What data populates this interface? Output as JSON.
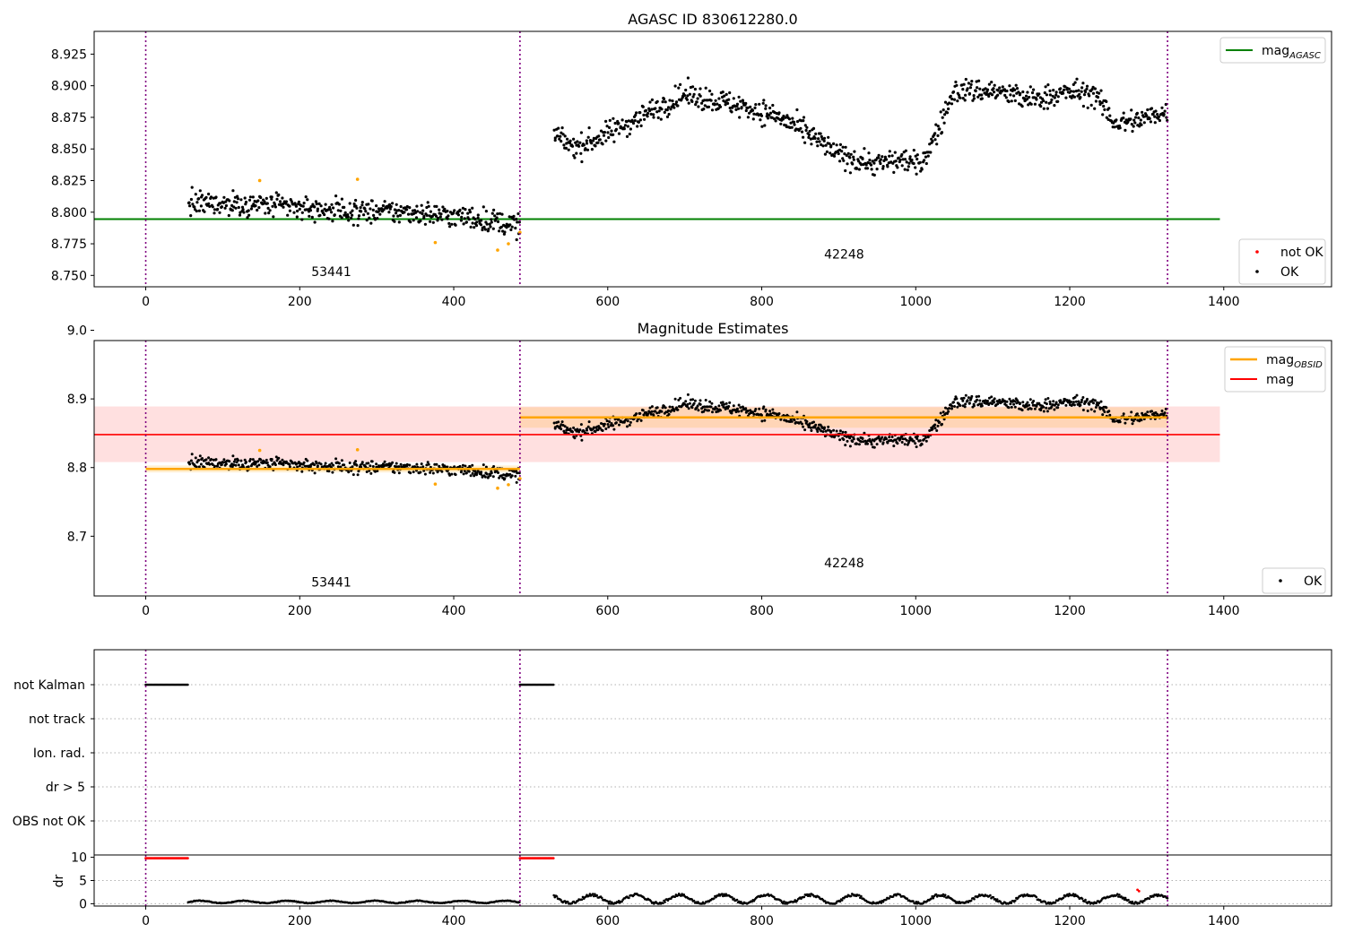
{
  "colors": {
    "ok_points": "#000000",
    "not_ok_points": "#ff0000",
    "flagged_points": "#ffa500",
    "mag_agasc_line": "#008000",
    "mag_obsid_line": "#ffa500",
    "mag_line": "#ff0000",
    "obs_boundary": "#800080"
  },
  "chart_data": [
    {
      "type": "scatter",
      "title": "AGASC ID 830612280.0",
      "xlim": [
        -67,
        1540
      ],
      "ylim": [
        8.741,
        8.943
      ],
      "xticks": [
        0,
        200,
        400,
        600,
        800,
        1000,
        1200,
        1400
      ],
      "yticks": [
        8.75,
        8.775,
        8.8,
        8.825,
        8.85,
        8.875,
        8.9,
        8.925
      ],
      "obs_boundaries": [
        0,
        486,
        1327
      ],
      "obs_labels": [
        {
          "text": "53441",
          "x": 241,
          "y": 8.7495
        },
        {
          "text": "42248",
          "x": 907,
          "y": 8.7635
        }
      ],
      "lines": [
        {
          "name": "mag$_{AGASC}$",
          "label_main": "mag",
          "label_sub": "AGASC",
          "y": 8.7945,
          "x": [
            -67,
            1395
          ],
          "color": "#008000"
        }
      ],
      "legend": [
        {
          "placement": "top-right",
          "entries": [
            {
              "main": "mag",
              "sub": "AGASC",
              "kind": "line",
              "color": "#008000"
            }
          ]
        },
        {
          "placement": "bottom-right",
          "entries": [
            {
              "main": "not OK",
              "kind": "dot",
              "color": "#ff0000"
            },
            {
              "main": "OK",
              "kind": "dot",
              "color": "#000000"
            }
          ]
        }
      ],
      "segments": [
        {
          "x": [
            55,
            486
          ],
          "trend": [
            [
              55,
              8.807
            ],
            [
              150,
              8.806
            ],
            [
              250,
              8.801
            ],
            [
              350,
              8.8
            ],
            [
              430,
              8.795
            ],
            [
              486,
              8.789
            ]
          ],
          "scatter": 0.0085
        },
        {
          "x": [
            530,
            1327
          ],
          "trend": [
            [
              530,
              8.861
            ],
            [
              560,
              8.851
            ],
            [
              600,
              8.862
            ],
            [
              650,
              8.878
            ],
            [
              700,
              8.893
            ],
            [
              760,
              8.886
            ],
            [
              820,
              8.876
            ],
            [
              870,
              8.858
            ],
            [
              900,
              8.845
            ],
            [
              950,
              8.838
            ],
            [
              985,
              8.842
            ],
            [
              1005,
              8.836
            ],
            [
              1030,
              8.866
            ],
            [
              1050,
              8.896
            ],
            [
              1100,
              8.896
            ],
            [
              1150,
              8.889
            ],
            [
              1200,
              8.895
            ],
            [
              1230,
              8.894
            ],
            [
              1260,
              8.87
            ],
            [
              1290,
              8.873
            ],
            [
              1327,
              8.88
            ]
          ],
          "scatter": 0.0085
        }
      ],
      "flagged_points": [
        [
          148,
          8.825
        ],
        [
          275,
          8.826
        ],
        [
          376,
          8.776
        ],
        [
          457,
          8.77
        ],
        [
          471,
          8.775
        ],
        [
          486,
          8.784
        ]
      ]
    },
    {
      "type": "scatter",
      "title": "Magnitude Estimates",
      "xlim": [
        -67,
        1540
      ],
      "ylim": [
        8.613,
        8.985
      ],
      "xticks": [
        0,
        200,
        400,
        600,
        800,
        1000,
        1200,
        1400
      ],
      "yticks": [
        8.7,
        8.8,
        8.9,
        9.0
      ],
      "obs_boundaries": [
        0,
        486,
        1327
      ],
      "obs_labels": [
        {
          "text": "53441",
          "x": 241,
          "y": 8.627
        },
        {
          "text": "42248",
          "x": 907,
          "y": 8.655
        }
      ],
      "bands": [
        {
          "x": [
            -67,
            1395
          ],
          "y": [
            8.808,
            8.889
          ],
          "color": "#ff0000",
          "alpha": 0.12
        },
        {
          "x": [
            0,
            486
          ],
          "y": [
            8.793,
            8.803
          ],
          "color": "#ffa500",
          "alpha": 0.18
        },
        {
          "x": [
            486,
            1327
          ],
          "y": [
            8.858,
            8.888
          ],
          "color": "#ffa500",
          "alpha": 0.18
        }
      ],
      "lines": [
        {
          "label_main": "mag",
          "label_sub": "OBSID",
          "segments": [
            {
              "x": [
                0,
                486
              ],
              "y": 8.798
            },
            {
              "x": [
                486,
                1327
              ],
              "y": 8.873
            }
          ],
          "color": "#ffa500",
          "width": 2.5
        },
        {
          "label_main": "mag",
          "segments": [
            {
              "x": [
                -67,
                1395
              ],
              "y": 8.848
            }
          ],
          "color": "#ff0000",
          "width": 1.6
        }
      ],
      "legend": [
        {
          "placement": "top-right",
          "entries": [
            {
              "main": "mag",
              "sub": "OBSID",
              "kind": "line",
              "color": "#ffa500"
            },
            {
              "main": "mag",
              "kind": "line",
              "color": "#ff0000"
            }
          ]
        },
        {
          "placement": "bottom-right",
          "entries": [
            {
              "main": "OK",
              "kind": "dot",
              "color": "#000000"
            }
          ]
        }
      ]
    },
    {
      "type": "scatter",
      "title": "",
      "xlim": [
        -67,
        1540
      ],
      "categories": [
        "not Kalman",
        "not track",
        "Ion. rad.",
        "dr > 5",
        "OBS not OK"
      ],
      "flag_runs": [
        {
          "category": "not Kalman",
          "x": [
            0,
            55
          ]
        },
        {
          "category": "not Kalman",
          "x": [
            486,
            530
          ]
        }
      ]
    },
    {
      "type": "scatter",
      "title": "",
      "ylabel": "dr",
      "xlim": [
        -67,
        1540
      ],
      "ylim": [
        -0.5,
        10.5
      ],
      "xticks": [
        0,
        200,
        400,
        600,
        800,
        1000,
        1200,
        1400
      ],
      "yticks": [
        0,
        5,
        10
      ],
      "red_runs": [
        {
          "x": [
            0,
            55
          ],
          "y": 9.8
        },
        {
          "x": [
            486,
            530
          ],
          "y": 9.8
        }
      ],
      "red_points": [
        [
          1288,
          3.0
        ],
        [
          1290,
          2.7
        ]
      ],
      "segments": [
        {
          "x": [
            55,
            486
          ],
          "base": 0.4,
          "amp": 0.25
        },
        {
          "x": [
            530,
            1327
          ],
          "base": 1.0,
          "amp": 0.9
        }
      ]
    }
  ]
}
